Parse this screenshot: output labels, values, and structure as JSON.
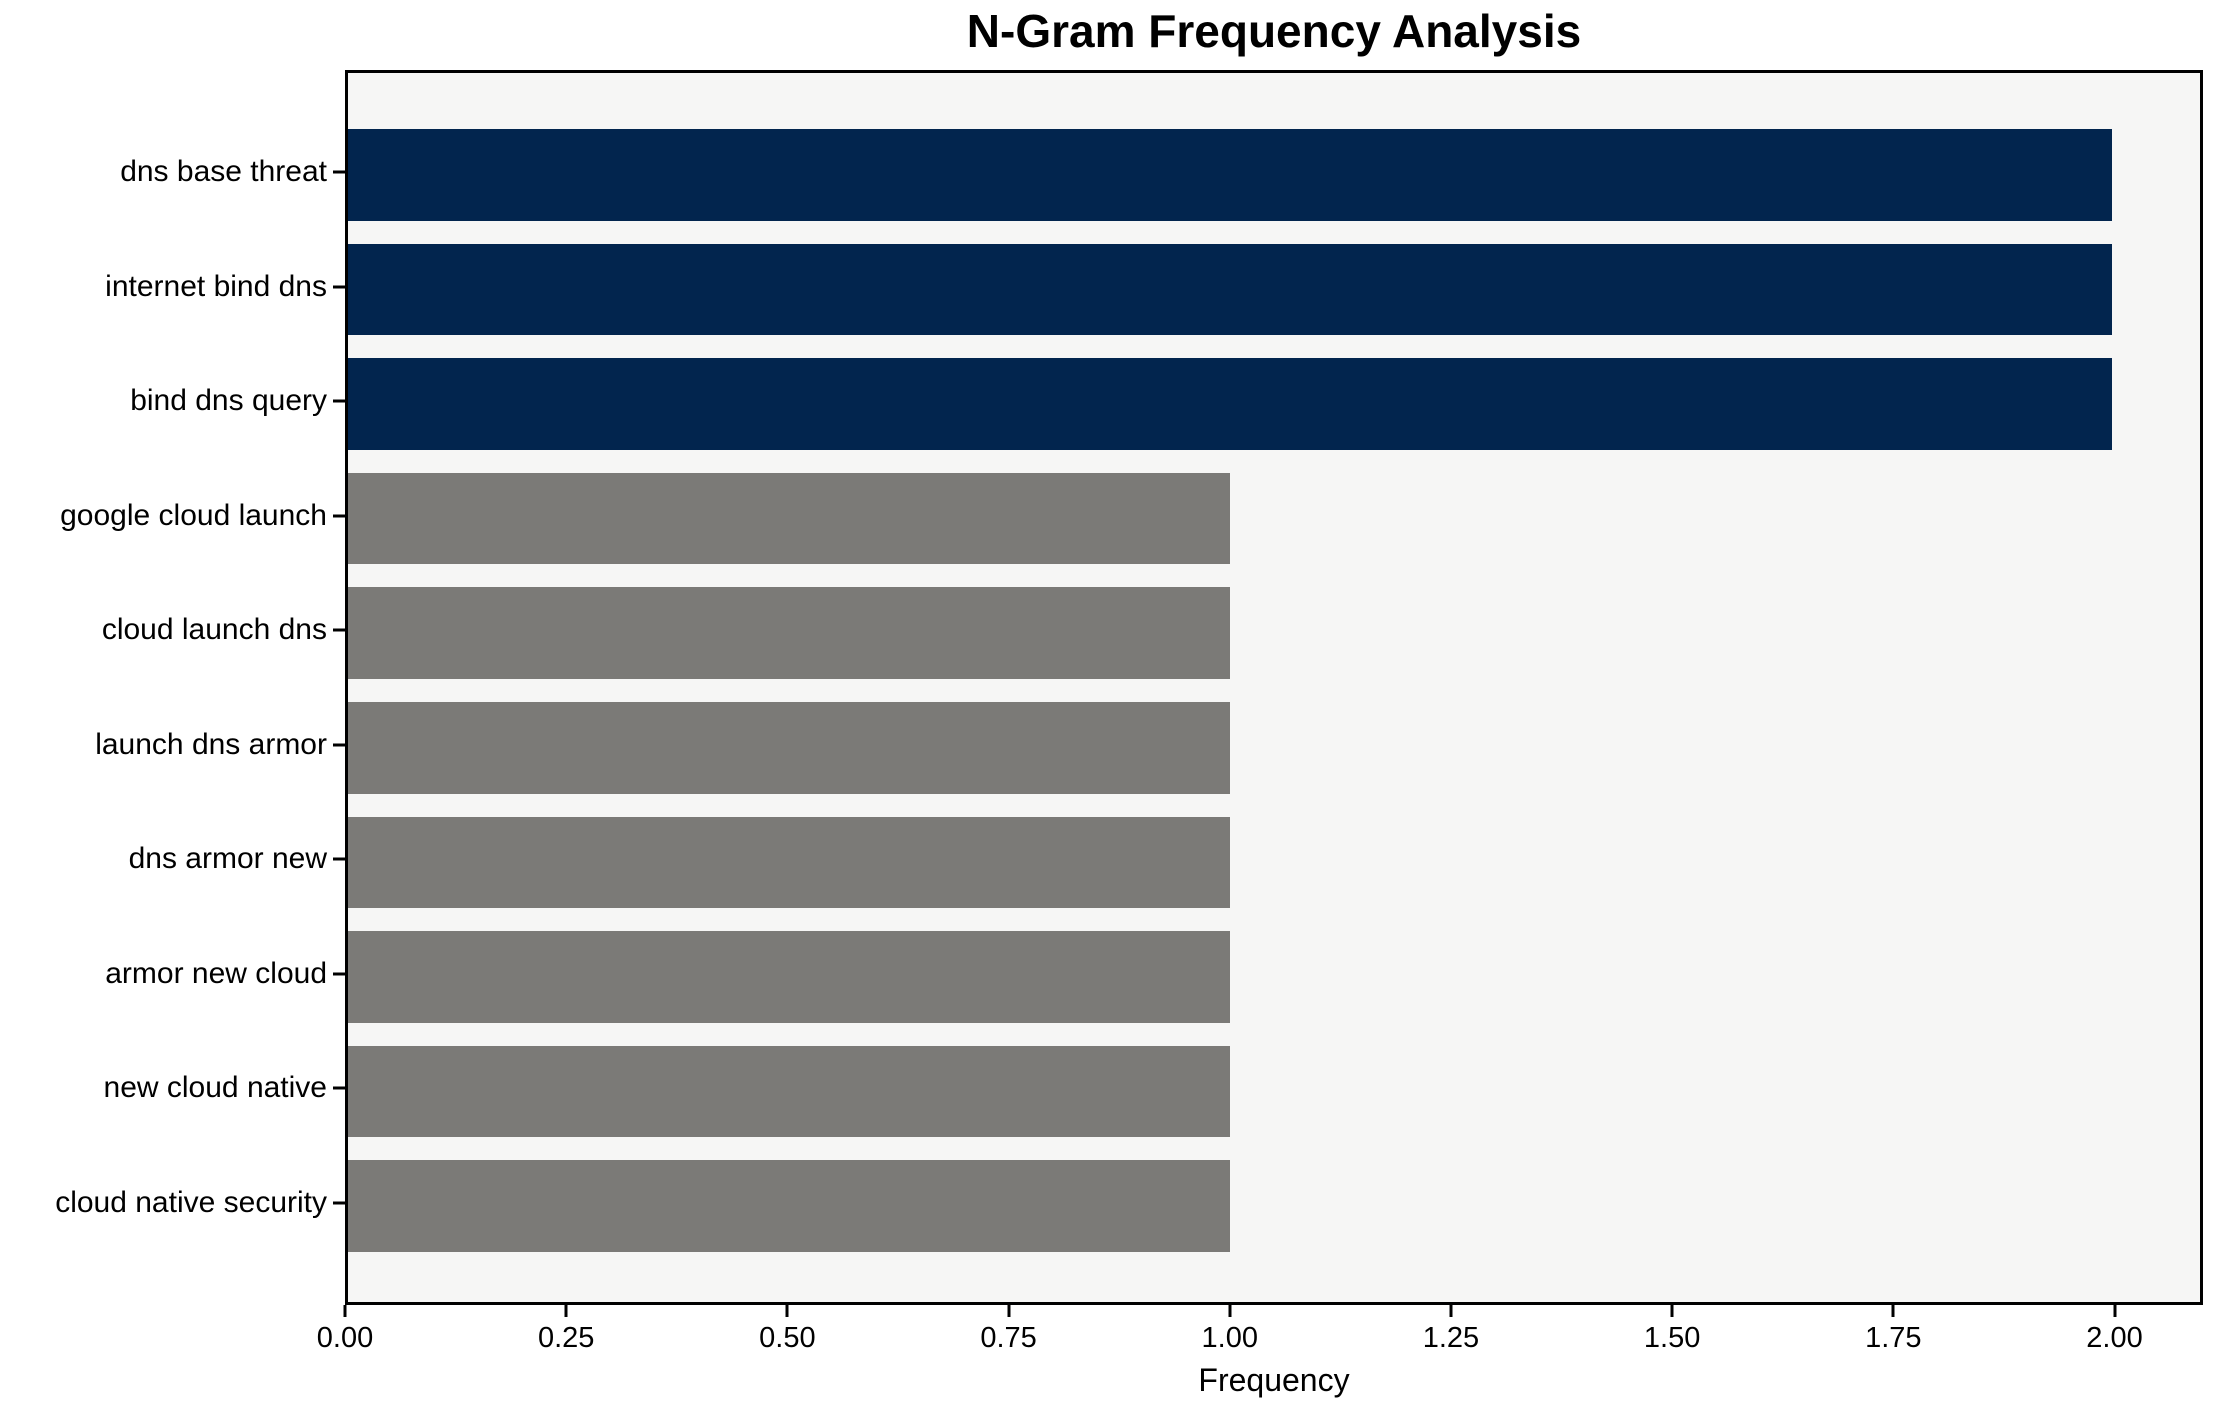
{
  "title": "N-Gram Frequency Analysis",
  "x_axis_label": "Frequency",
  "chart_data": {
    "type": "bar",
    "orientation": "horizontal",
    "title": "N-Gram Frequency Analysis",
    "xlabel": "Frequency",
    "ylabel": "",
    "categories": [
      "dns base threat",
      "internet bind dns",
      "bind dns query",
      "google cloud launch",
      "cloud launch dns",
      "launch dns armor",
      "dns armor new",
      "armor new cloud",
      "new cloud native",
      "cloud native security"
    ],
    "values": [
      2,
      2,
      2,
      1,
      1,
      1,
      1,
      1,
      1,
      1
    ],
    "bar_colors": [
      "#02254e",
      "#02254e",
      "#02254e",
      "#7b7a77",
      "#7b7a77",
      "#7b7a77",
      "#7b7a77",
      "#7b7a77",
      "#7b7a77",
      "#7b7a77"
    ],
    "xlim": [
      0,
      2.1
    ],
    "x_ticks": [
      "0.00",
      "0.25",
      "0.50",
      "0.75",
      "1.00",
      "1.25",
      "1.50",
      "1.75",
      "2.00"
    ],
    "x_tick_values": [
      0,
      0.25,
      0.5,
      0.75,
      1.0,
      1.25,
      1.5,
      1.75,
      2.0
    ],
    "grid": false,
    "legend": "none",
    "plot_background": "#f6f6f5",
    "figure_background": "#ffffff",
    "accent_colors": {
      "high_frequency": "#02254e",
      "low_frequency": "#7b7a77"
    }
  }
}
